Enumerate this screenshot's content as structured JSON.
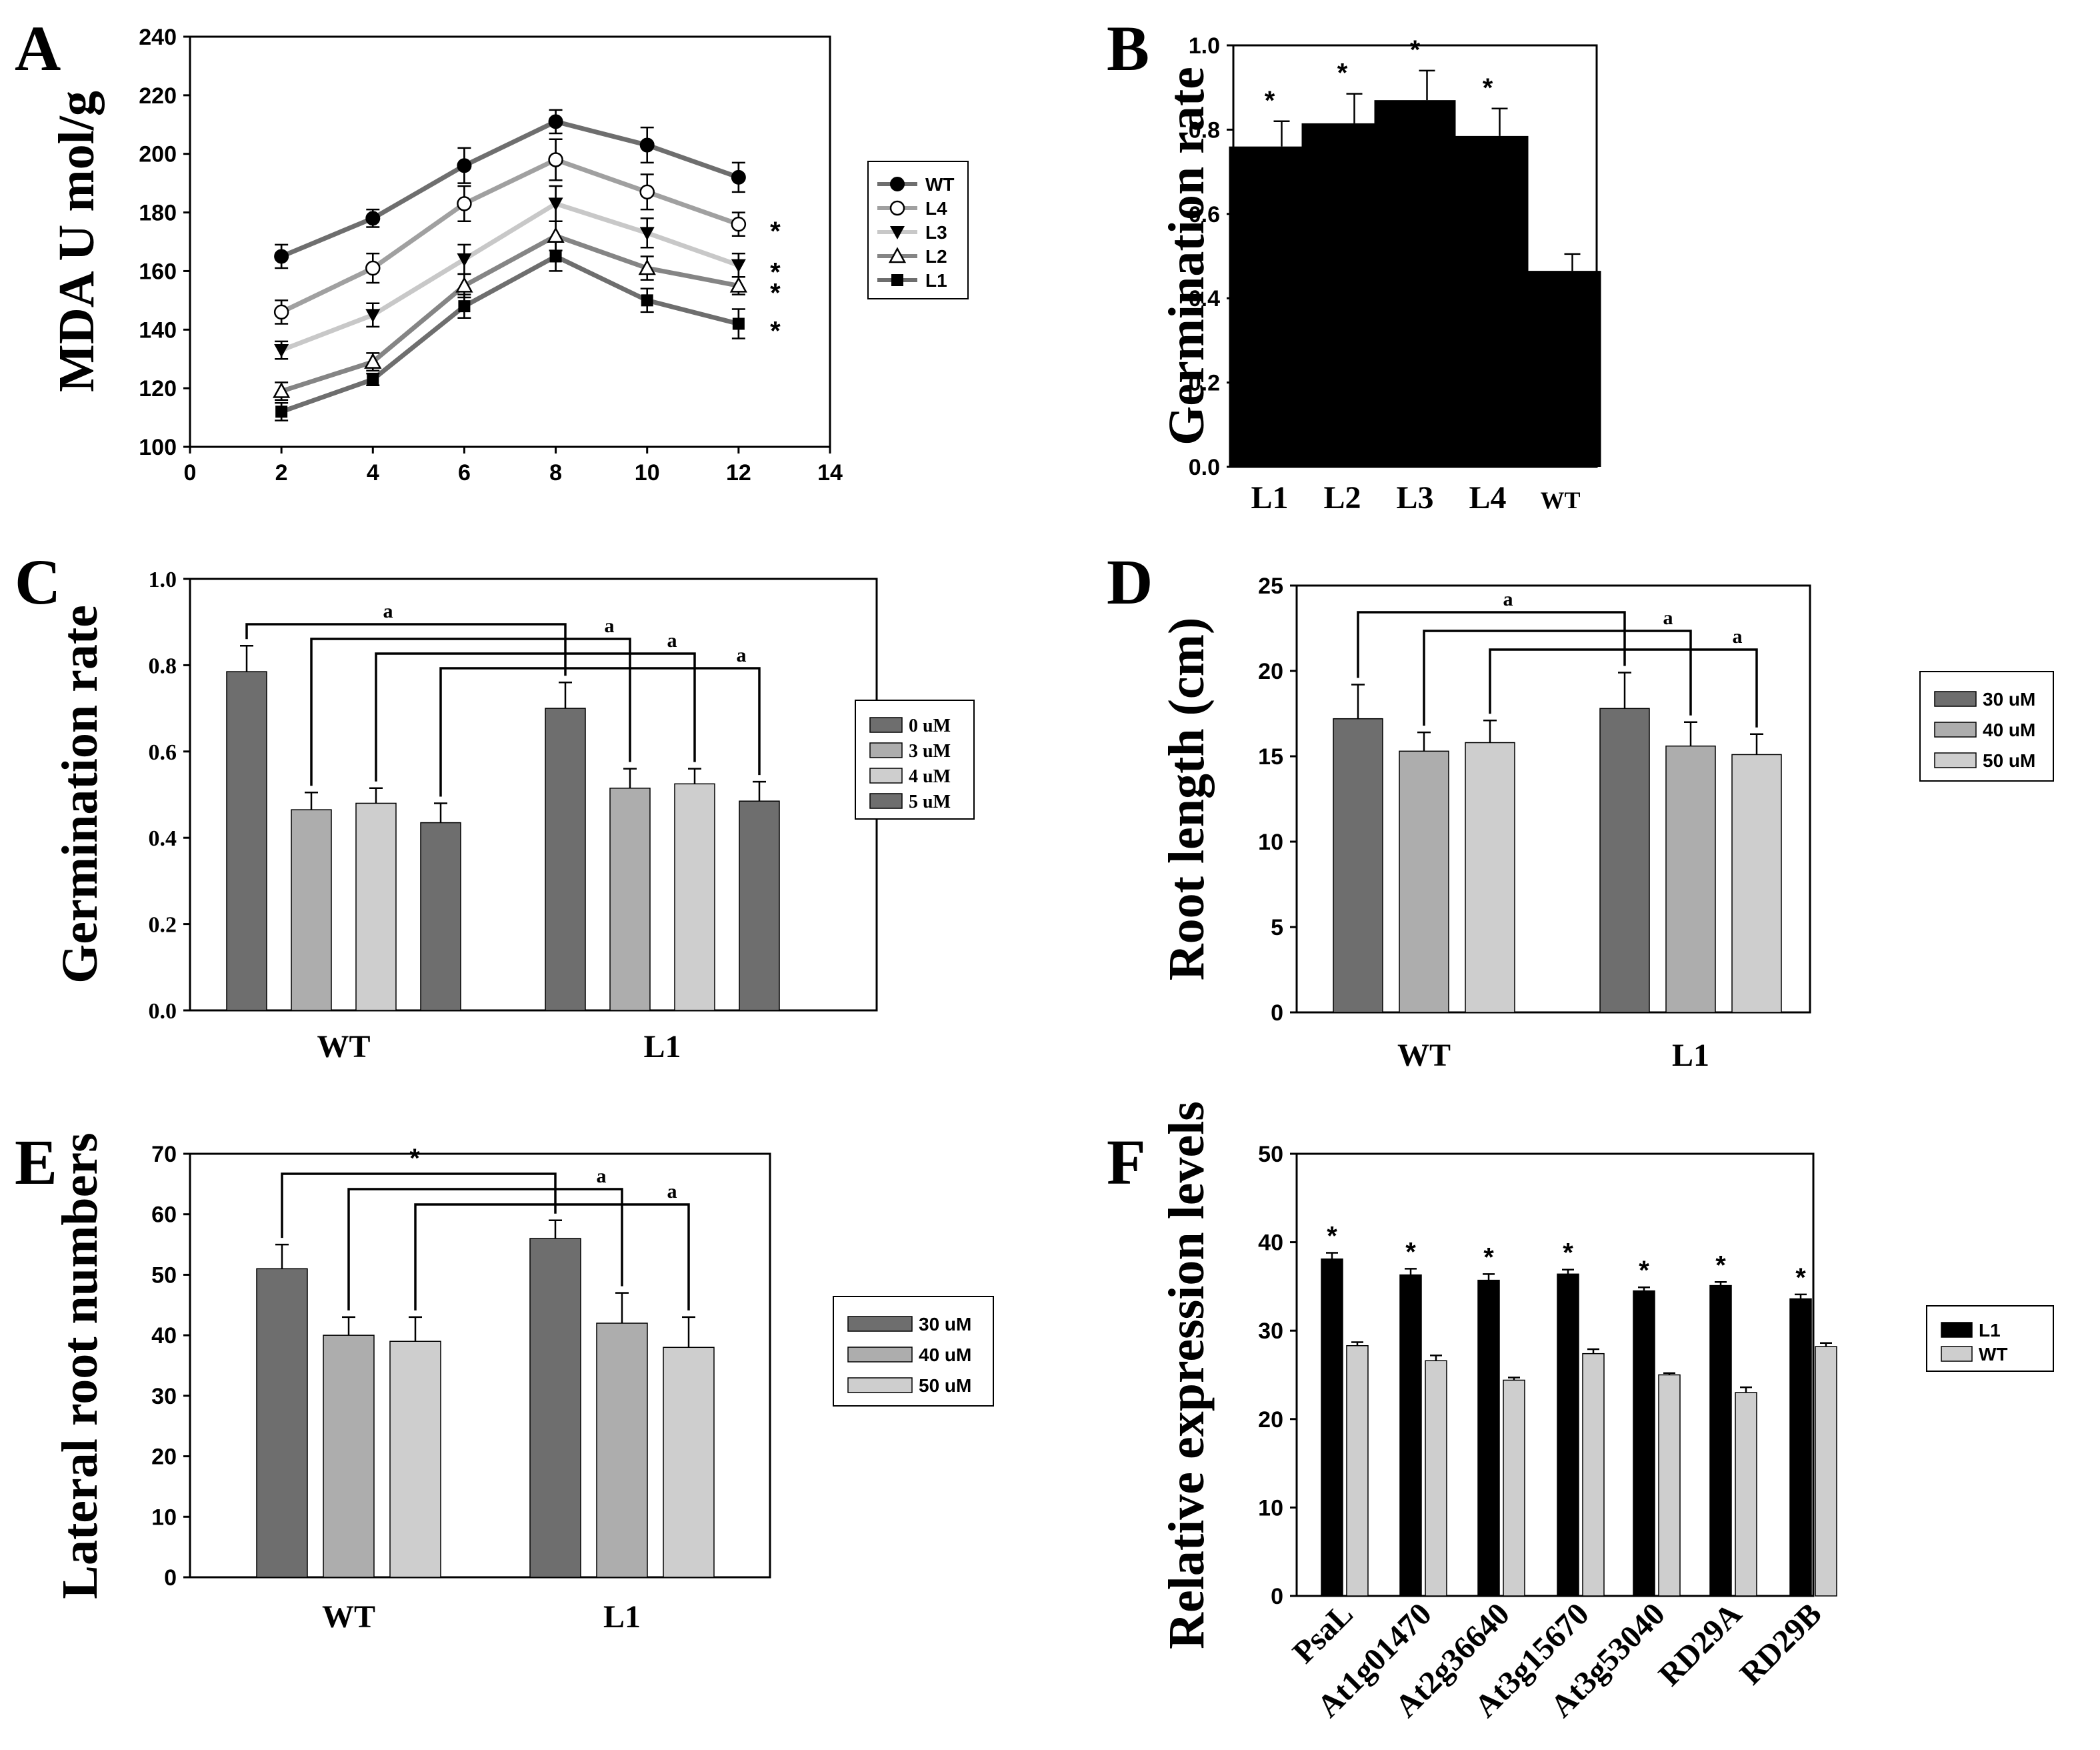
{
  "colors": {
    "black": "#000000",
    "dark": "#6e6e6e",
    "mid": "#adadad",
    "light": "#cecece",
    "wt_line": "#6e6e6e",
    "l4_line": "#a0a0a0",
    "l3_line": "#c8c8c8",
    "l2_line": "#858585",
    "l1_line": "#6e6e6e"
  },
  "chart_data": [
    {
      "id": "A",
      "panel_label": "A",
      "type": "line",
      "ylabel": "MDA U mol/g",
      "xlim": [
        0,
        14
      ],
      "xticks": [
        0,
        2,
        4,
        6,
        8,
        10,
        12,
        14
      ],
      "ylim": [
        100,
        240
      ],
      "yticks": [
        100,
        120,
        140,
        160,
        180,
        200,
        220,
        240
      ],
      "x": [
        2,
        4,
        6,
        8,
        10,
        12
      ],
      "series": [
        {
          "name": "WT",
          "marker": "circle-filled",
          "values": [
            165,
            178,
            196,
            211,
            203,
            192
          ],
          "errors": [
            4,
            3,
            6,
            4,
            6,
            5
          ],
          "sig": ""
        },
        {
          "name": "L4",
          "marker": "circle-open",
          "values": [
            146,
            161,
            183,
            198,
            187,
            176
          ],
          "errors": [
            4,
            5,
            6,
            7,
            6,
            4
          ],
          "sig": "*"
        },
        {
          "name": "L3",
          "marker": "triangle-down-filled",
          "values": [
            133,
            145,
            164,
            183,
            173,
            162
          ],
          "errors": [
            3,
            4,
            5,
            6,
            5,
            4
          ],
          "sig": "*"
        },
        {
          "name": "L2",
          "marker": "triangle-up-open",
          "values": [
            119,
            129,
            155,
            172,
            161,
            155
          ],
          "errors": [
            3,
            3,
            4,
            5,
            4,
            3
          ],
          "sig": "*"
        },
        {
          "name": "L1",
          "marker": "square-filled",
          "values": [
            112,
            123,
            148,
            165,
            150,
            142
          ],
          "errors": [
            3,
            2,
            4,
            5,
            4,
            5
          ],
          "sig": "*"
        }
      ]
    },
    {
      "id": "B",
      "panel_label": "B",
      "type": "bar",
      "ylabel": "Germination rate",
      "ylim": [
        0,
        1
      ],
      "yticks": [
        "0.0",
        "0.2",
        "0.4",
        "0.6",
        "0.8",
        "1.0"
      ],
      "categories": [
        "L1",
        "L2",
        "L3",
        "L4",
        "WT"
      ],
      "values": [
        0.76,
        0.815,
        0.87,
        0.785,
        0.465
      ],
      "errors": [
        0.06,
        0.07,
        0.07,
        0.065,
        0.04
      ],
      "sig": [
        "*",
        "*",
        "*",
        "*",
        ""
      ]
    },
    {
      "id": "C",
      "panel_label": "C",
      "type": "bar",
      "ylabel": "Germination rate",
      "ylim": [
        0,
        1
      ],
      "yticks": [
        "0.0",
        "0.2",
        "0.4",
        "0.6",
        "0.8",
        "1.0"
      ],
      "categories": [
        "WT",
        "L1"
      ],
      "series": [
        {
          "name": "0 uM",
          "values": [
            0.785,
            0.7
          ],
          "errors": [
            0.06,
            0.06
          ]
        },
        {
          "name": "3 uM",
          "values": [
            0.465,
            0.515
          ],
          "errors": [
            0.04,
            0.045
          ]
        },
        {
          "name": "4 uM",
          "values": [
            0.48,
            0.525
          ],
          "errors": [
            0.035,
            0.035
          ]
        },
        {
          "name": "5 uM",
          "values": [
            0.435,
            0.485
          ],
          "errors": [
            0.045,
            0.045
          ]
        }
      ],
      "brackets": [
        {
          "series": 0,
          "label": "a"
        },
        {
          "series": 1,
          "label": "a"
        },
        {
          "series": 2,
          "label": "a"
        },
        {
          "series": 3,
          "label": "a"
        }
      ]
    },
    {
      "id": "D",
      "panel_label": "D",
      "type": "bar",
      "ylabel": "Root length (cm)",
      "ylim": [
        0,
        25
      ],
      "yticks": [
        "0",
        "5",
        "10",
        "15",
        "20",
        "25"
      ],
      "categories": [
        "WT",
        "L1"
      ],
      "series": [
        {
          "name": "30 uM",
          "values": [
            17.2,
            17.8
          ],
          "errors": [
            2.0,
            2.1
          ]
        },
        {
          "name": "40 uM",
          "values": [
            15.3,
            15.6
          ],
          "errors": [
            1.1,
            1.4
          ]
        },
        {
          "name": "50 uM",
          "values": [
            15.8,
            15.1
          ],
          "errors": [
            1.3,
            1.2
          ]
        }
      ],
      "brackets": [
        {
          "series": 0,
          "label": "a"
        },
        {
          "series": 1,
          "label": "a"
        },
        {
          "series": 2,
          "label": "a"
        }
      ]
    },
    {
      "id": "E",
      "panel_label": "E",
      "type": "bar",
      "ylabel": "Lateral root numbers",
      "ylim": [
        0,
        70
      ],
      "yticks": [
        "0",
        "10",
        "20",
        "30",
        "40",
        "50",
        "60",
        "70"
      ],
      "categories": [
        "WT",
        "L1"
      ],
      "series": [
        {
          "name": "30 uM",
          "values": [
            51,
            56
          ],
          "errors": [
            4,
            3
          ]
        },
        {
          "name": "40 uM",
          "values": [
            40,
            42
          ],
          "errors": [
            3,
            5
          ]
        },
        {
          "name": "50 uM",
          "values": [
            39,
            38
          ],
          "errors": [
            4,
            5
          ]
        }
      ],
      "brackets": [
        {
          "series": 0,
          "label": "*"
        },
        {
          "series": 1,
          "label": "a"
        },
        {
          "series": 2,
          "label": "a"
        }
      ]
    },
    {
      "id": "F",
      "panel_label": "F",
      "type": "bar",
      "ylabel": "Relative expression levels",
      "ylim": [
        0,
        50
      ],
      "yticks": [
        "0",
        "10",
        "20",
        "30",
        "40",
        "50"
      ],
      "categories": [
        "PsaL",
        "At1g01470",
        "At2g36640",
        "At3g15670",
        "At3g53040",
        "RD29A",
        "RD29B"
      ],
      "series": [
        {
          "name": "L1",
          "values": [
            38.1,
            36.3,
            35.7,
            36.4,
            34.5,
            35.1,
            33.6
          ],
          "errors": [
            0.7,
            0.7,
            0.7,
            0.5,
            0.4,
            0.4,
            0.5
          ]
        },
        {
          "name": "WT",
          "values": [
            28.3,
            26.6,
            24.4,
            27.4,
            25.0,
            23.0,
            28.2
          ],
          "errors": [
            0.4,
            0.6,
            0.3,
            0.5,
            0.2,
            0.6,
            0.4
          ]
        }
      ],
      "sig": [
        "*",
        "*",
        "*",
        "*",
        "*",
        "*",
        "*"
      ]
    }
  ]
}
